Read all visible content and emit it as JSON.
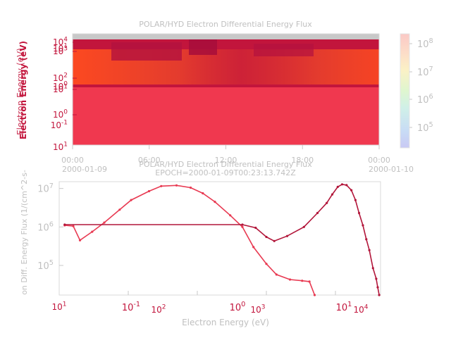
{
  "chart_data": [
    {
      "type": "heatmap",
      "title": "POLAR/HYD  Electron Differential Energy Flux",
      "ylabel_overlap": [
        "Electron Energy (eV)",
        "Electron Energy (eV)"
      ],
      "y_ticks_overlap_a": [
        "10^4",
        "10^3",
        "10^2",
        "10^1",
        "10^0"
      ],
      "y_ticks_overlap_b": [
        "10^1",
        "10^0",
        "10^-1"
      ],
      "y_ticks_right": [
        "10^1"
      ],
      "x_ticks": [
        "00:00",
        "06:00",
        "12:00",
        "18:00",
        "00:00"
      ],
      "x_dates": [
        "2000-01-09",
        "2000-01-10"
      ],
      "colorbar_ticks": [
        "10^8",
        "10^7",
        "10^6",
        "10^5"
      ],
      "colors": {
        "fill_solid": "#f0384f",
        "fill_dark": "#c2153c",
        "hot": "#ff4b1f",
        "saturated_top": "#c8c8c8"
      }
    },
    {
      "type": "line",
      "title": "POLAR/HYD  Electron Differential Energy Flux",
      "subtitle": "EPOCH=2000-01-09T00:23:13.742Z",
      "xlabel": "Electron Energy (eV)",
      "ylabel": "on Diff. Energy Flux (1/(cm^2-s-",
      "y_ticks": [
        "10^7",
        "10^6",
        "10^5"
      ],
      "x_ticks_a": [
        "10^1",
        "10^2",
        "10^3",
        "10^4"
      ],
      "x_ticks_b": [
        "10^-1",
        "10^0",
        "10^1"
      ],
      "x_tick_left": "10^1",
      "ylim": [
        17000.0,
        15000000.0
      ],
      "series": [
        {
          "color": "#e83a52",
          "values": [
            [
              1.2,
              1100000.0
            ],
            [
              1.6,
              1050000.0
            ],
            [
              2.0,
              450000.0
            ],
            [
              3.0,
              750000.0
            ],
            [
              4.5,
              1300000.0
            ],
            [
              7.5,
              2800000.0
            ],
            [
              11,
              5000000.0
            ],
            [
              20,
              8500000.0
            ],
            [
              30,
              11500000.0
            ],
            [
              50,
              12000000.0
            ],
            [
              80,
              10500000.0
            ],
            [
              120,
              7500000.0
            ],
            [
              180,
              4500000.0
            ],
            [
              300,
              2000000.0
            ],
            [
              450,
              1000000.0
            ],
            [
              650,
              300000.0
            ],
            [
              1000,
              110000.0
            ],
            [
              1400,
              58000.0
            ],
            [
              2200,
              43000.0
            ],
            [
              3300,
              40000.0
            ],
            [
              4200,
              38000.0
            ],
            [
              5000,
              17000.0
            ]
          ]
        },
        {
          "color": "#b2163a",
          "values": [
            [
              1.2,
              1150000.0
            ],
            [
              450,
              1150000.0
            ],
            [
              700,
              950000.0
            ],
            [
              1000,
              550000.0
            ],
            [
              1300,
              430000.0
            ],
            [
              2000,
              580000.0
            ],
            [
              3500,
              1000000.0
            ],
            [
              5500,
              2300000.0
            ],
            [
              7500,
              4200000.0
            ],
            [
              9000,
              7000000.0
            ],
            [
              10800,
              11000000.0
            ],
            [
              12500,
              12800000.0
            ],
            [
              14500,
              12200000.0
            ],
            [
              17000,
              9000000.0
            ],
            [
              19500,
              5000000.0
            ],
            [
              22000,
              2300000.0
            ],
            [
              25000,
              1100000.0
            ],
            [
              28000,
              480000.0
            ],
            [
              31000,
              250000.0
            ],
            [
              35000,
              85000.0
            ],
            [
              39000,
              45000.0
            ],
            [
              41000,
              27000.0
            ],
            [
              43000,
              17000.0
            ]
          ]
        }
      ]
    }
  ]
}
